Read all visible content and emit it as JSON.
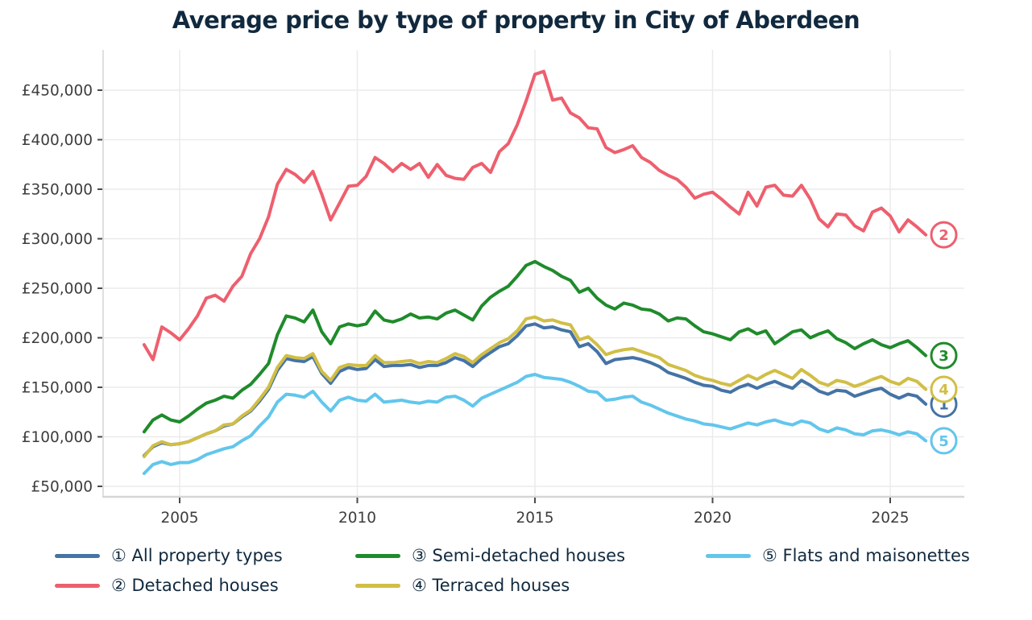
{
  "header": {
    "title": "Average price by type of property in City of Aberdeen",
    "text_color": "#11293e"
  },
  "axes": {
    "tick_label_color": "#3d3d3d",
    "grid_color": "#ebebeb",
    "axis_line_color": "#d6d6d6",
    "tick_mark_color": "#4a4a4a"
  },
  "chart_data": {
    "type": "line",
    "title": "Average price by type of property in City of Aberdeen",
    "xlabel": "",
    "ylabel": "",
    "currency": "GBP",
    "sampling": "quarterly",
    "grid": true,
    "legend_position": "bottom",
    "xlim": [
      2002.85,
      2027.1
    ],
    "ylim": [
      40000,
      490000
    ],
    "x_ticks": [
      2005,
      2010,
      2015,
      2020,
      2025
    ],
    "x_tick_labels": [
      "2005",
      "2010",
      "2015",
      "2020",
      "2025"
    ],
    "y_ticks": [
      50000,
      100000,
      150000,
      200000,
      250000,
      300000,
      350000,
      400000,
      450000
    ],
    "y_tick_labels": [
      "£50,000",
      "£100,000",
      "£150,000",
      "£200,000",
      "£250,000",
      "£300,000",
      "£350,000",
      "£400,000",
      "£450,000"
    ],
    "x": [
      2004.0,
      2004.25,
      2004.5,
      2004.75,
      2005.0,
      2005.25,
      2005.5,
      2005.75,
      2006.0,
      2006.25,
      2006.5,
      2006.75,
      2007.0,
      2007.25,
      2007.5,
      2007.75,
      2008.0,
      2008.25,
      2008.5,
      2008.75,
      2009.0,
      2009.25,
      2009.5,
      2009.75,
      2010.0,
      2010.25,
      2010.5,
      2010.75,
      2011.0,
      2011.25,
      2011.5,
      2011.75,
      2012.0,
      2012.25,
      2012.5,
      2012.75,
      2013.0,
      2013.25,
      2013.5,
      2013.75,
      2014.0,
      2014.25,
      2014.5,
      2014.75,
      2015.0,
      2015.25,
      2015.5,
      2015.75,
      2016.0,
      2016.25,
      2016.5,
      2016.75,
      2017.0,
      2017.25,
      2017.5,
      2017.75,
      2018.0,
      2018.25,
      2018.5,
      2018.75,
      2019.0,
      2019.25,
      2019.5,
      2019.75,
      2020.0,
      2020.25,
      2020.5,
      2020.75,
      2021.0,
      2021.25,
      2021.5,
      2021.75,
      2022.0,
      2022.25,
      2022.5,
      2022.75,
      2023.0,
      2023.25,
      2023.5,
      2023.75,
      2024.0,
      2024.25,
      2024.5,
      2024.75,
      2025.0,
      2025.25,
      2025.5,
      2025.75,
      2026.0
    ],
    "series": [
      {
        "number": "1",
        "slug": "all-property-types",
        "label": "① All property types",
        "color": "#4573a5",
        "values": [
          81000,
          90000,
          94000,
          92000,
          93000,
          95000,
          99000,
          103000,
          106000,
          111000,
          113000,
          120000,
          126000,
          136000,
          148000,
          167000,
          179000,
          177000,
          176000,
          181000,
          164000,
          154000,
          166000,
          170000,
          168000,
          169000,
          178000,
          171000,
          172000,
          172000,
          173000,
          170000,
          172000,
          172000,
          175000,
          180000,
          177000,
          171000,
          179000,
          185000,
          191000,
          194000,
          202000,
          212000,
          214000,
          210000,
          211000,
          208000,
          206000,
          191000,
          194000,
          186000,
          174000,
          178000,
          179000,
          180000,
          178000,
          175000,
          171000,
          165000,
          162000,
          159000,
          155000,
          152000,
          151000,
          147000,
          145000,
          150000,
          153000,
          149000,
          153000,
          156000,
          152000,
          149000,
          157000,
          152000,
          146000,
          143000,
          147000,
          146000,
          141000,
          144000,
          147000,
          149000,
          143000,
          139000,
          143000,
          141000,
          133000
        ]
      },
      {
        "number": "2",
        "slug": "detached-houses",
        "label": "② Detached houses",
        "color": "#ee5f6e",
        "values": [
          193000,
          178000,
          211000,
          205000,
          198000,
          209000,
          222000,
          240000,
          243000,
          237000,
          252000,
          262000,
          285000,
          300000,
          322000,
          355000,
          370000,
          365000,
          357000,
          368000,
          345000,
          319000,
          336000,
          353000,
          354000,
          363000,
          382000,
          376000,
          368000,
          376000,
          370000,
          376000,
          362000,
          375000,
          364000,
          361000,
          360000,
          372000,
          376000,
          367000,
          388000,
          396000,
          415000,
          439000,
          466000,
          469000,
          440000,
          442000,
          427000,
          422000,
          412000,
          411000,
          392000,
          387000,
          390000,
          394000,
          382000,
          377000,
          369000,
          364000,
          360000,
          352000,
          341000,
          345000,
          347000,
          340000,
          332000,
          325000,
          347000,
          333000,
          352000,
          354000,
          344000,
          343000,
          354000,
          340000,
          320000,
          312000,
          325000,
          324000,
          313000,
          308000,
          327000,
          331000,
          323000,
          307000,
          319000,
          312000,
          304000
        ]
      },
      {
        "number": "3",
        "slug": "semi-detached-houses",
        "label": "③ Semi-detached houses",
        "color": "#1f8b2b",
        "values": [
          105000,
          117000,
          122000,
          117000,
          115000,
          121000,
          128000,
          134000,
          137000,
          141000,
          139000,
          147000,
          153000,
          163000,
          174000,
          203000,
          222000,
          220000,
          216000,
          228000,
          206000,
          194000,
          211000,
          214000,
          212000,
          214000,
          227000,
          218000,
          216000,
          219000,
          224000,
          220000,
          221000,
          219000,
          225000,
          228000,
          223000,
          218000,
          232000,
          241000,
          247000,
          252000,
          262000,
          273000,
          277000,
          272000,
          268000,
          262000,
          258000,
          246000,
          250000,
          240000,
          233000,
          229000,
          235000,
          233000,
          229000,
          228000,
          224000,
          217000,
          220000,
          219000,
          212000,
          206000,
          204000,
          201000,
          198000,
          206000,
          209000,
          204000,
          207000,
          194000,
          200000,
          206000,
          208000,
          200000,
          204000,
          207000,
          199000,
          195000,
          189000,
          194000,
          198000,
          193000,
          190000,
          194000,
          197000,
          190000,
          182000
        ]
      },
      {
        "number": "4",
        "slug": "terraced-houses",
        "label": "④ Terraced houses",
        "color": "#d1be46",
        "values": [
          80000,
          91000,
          95000,
          92000,
          93000,
          95000,
          99000,
          103000,
          106000,
          112000,
          113000,
          121000,
          127000,
          138000,
          150000,
          170000,
          182000,
          180000,
          179000,
          184000,
          166000,
          157000,
          170000,
          173000,
          172000,
          172000,
          182000,
          175000,
          175000,
          176000,
          177000,
          174000,
          176000,
          175000,
          179000,
          184000,
          181000,
          175000,
          183000,
          189000,
          195000,
          199000,
          207000,
          219000,
          221000,
          217000,
          218000,
          215000,
          213000,
          198000,
          201000,
          193000,
          183000,
          186000,
          188000,
          189000,
          186000,
          183000,
          180000,
          173000,
          170000,
          167000,
          162000,
          159000,
          157000,
          154000,
          152000,
          157000,
          162000,
          158000,
          163000,
          167000,
          163000,
          159000,
          168000,
          162000,
          155000,
          152000,
          157000,
          155000,
          151000,
          154000,
          158000,
          161000,
          156000,
          153000,
          159000,
          156000,
          148000
        ]
      },
      {
        "number": "5",
        "slug": "flats-and-maisonettes",
        "label": "⑤ Flats and maisonettes",
        "color": "#62c6ec",
        "values": [
          63000,
          72000,
          75000,
          72000,
          74000,
          74000,
          77000,
          82000,
          85000,
          88000,
          90000,
          96000,
          101000,
          111000,
          120000,
          135000,
          143000,
          142000,
          140000,
          146000,
          135000,
          126000,
          137000,
          140000,
          137000,
          136000,
          143000,
          135000,
          136000,
          137000,
          135000,
          134000,
          136000,
          135000,
          140000,
          141000,
          137000,
          131000,
          139000,
          143000,
          147000,
          151000,
          155000,
          161000,
          163000,
          160000,
          159000,
          158000,
          155000,
          151000,
          146000,
          145000,
          137000,
          138000,
          140000,
          141000,
          135000,
          132000,
          128000,
          124000,
          121000,
          118000,
          116000,
          113000,
          112000,
          110000,
          108000,
          111000,
          114000,
          112000,
          115000,
          117000,
          114000,
          112000,
          116000,
          114000,
          108000,
          105000,
          109000,
          107000,
          103000,
          102000,
          106000,
          107000,
          105000,
          102000,
          105000,
          103000,
          96000
        ]
      }
    ]
  }
}
